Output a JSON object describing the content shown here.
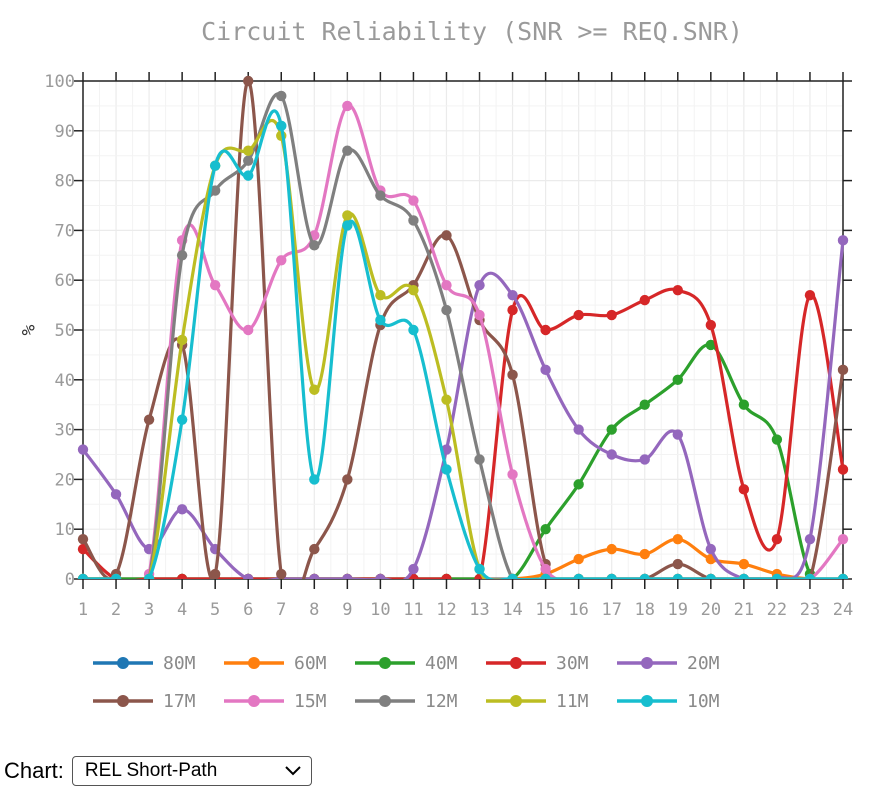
{
  "chart_data": {
    "type": "line",
    "title": "Circuit Reliability (SNR >= REQ.SNR)",
    "xlabel": "",
    "ylabel": "%",
    "xlim": [
      1,
      24
    ],
    "ylim": [
      0,
      100
    ],
    "x": [
      1,
      2,
      3,
      4,
      5,
      6,
      7,
      8,
      9,
      10,
      11,
      12,
      13,
      14,
      15,
      16,
      17,
      18,
      19,
      20,
      21,
      22,
      23,
      24
    ],
    "x_ticks": [
      "1",
      "2",
      "3",
      "4",
      "5",
      "6",
      "7",
      "8",
      "9",
      "10",
      "11",
      "12",
      "13",
      "14",
      "15",
      "16",
      "17",
      "18",
      "19",
      "20",
      "21",
      "22",
      "23",
      "24"
    ],
    "y_ticks": [
      "0",
      "10",
      "20",
      "30",
      "40",
      "50",
      "60",
      "70",
      "80",
      "90",
      "100"
    ],
    "grid": true,
    "legend_position": "bottom",
    "series": [
      {
        "name": "80M",
        "color": "#1f77b4",
        "values": [
          0,
          0,
          0,
          0,
          0,
          0,
          0,
          0,
          0,
          0,
          0,
          0,
          0,
          0,
          0,
          0,
          0,
          0,
          0,
          0,
          0,
          0,
          0,
          0
        ]
      },
      {
        "name": "60M",
        "color": "#ff7f0e",
        "values": [
          0,
          0,
          0,
          0,
          0,
          0,
          0,
          0,
          0,
          0,
          0,
          0,
          0,
          0,
          1,
          4,
          6,
          5,
          8,
          4,
          3,
          1,
          0,
          0
        ]
      },
      {
        "name": "40M",
        "color": "#2ca02c",
        "values": [
          0,
          0,
          0,
          0,
          0,
          0,
          0,
          0,
          0,
          0,
          0,
          0,
          0,
          0,
          10,
          19,
          30,
          35,
          40,
          47,
          35,
          28,
          1,
          0
        ]
      },
      {
        "name": "30M",
        "color": "#d62728",
        "values": [
          6,
          0,
          0,
          0,
          0,
          0,
          0,
          0,
          0,
          0,
          0,
          0,
          0,
          54,
          50,
          53,
          53,
          56,
          58,
          51,
          18,
          8,
          57,
          22
        ]
      },
      {
        "name": "20M",
        "color": "#9467bd",
        "values": [
          26,
          17,
          6,
          14,
          6,
          0,
          0,
          0,
          0,
          0,
          2,
          26,
          59,
          57,
          42,
          30,
          25,
          24,
          29,
          6,
          0,
          0,
          8,
          68
        ]
      },
      {
        "name": "17M",
        "color": "#8c564b",
        "values": [
          8,
          1,
          32,
          47,
          1,
          100,
          1,
          6,
          20,
          51,
          59,
          69,
          52,
          41,
          3,
          0,
          0,
          0,
          3,
          0,
          0,
          0,
          0,
          42
        ]
      },
      {
        "name": "15M",
        "color": "#e377c2",
        "values": [
          0,
          0,
          1,
          68,
          59,
          50,
          64,
          69,
          95,
          78,
          76,
          59,
          53,
          21,
          2,
          0,
          0,
          0,
          0,
          0,
          0,
          0,
          0,
          8
        ]
      },
      {
        "name": "12M",
        "color": "#7f7f7f",
        "values": [
          0,
          0,
          0,
          65,
          78,
          84,
          97,
          67,
          86,
          77,
          72,
          54,
          24,
          0,
          0,
          0,
          0,
          0,
          0,
          0,
          0,
          0,
          0,
          0
        ]
      },
      {
        "name": "11M",
        "color": "#bcbd22",
        "values": [
          0,
          0,
          0,
          48,
          83,
          86,
          89,
          38,
          73,
          57,
          58,
          36,
          2,
          0,
          0,
          0,
          0,
          0,
          0,
          0,
          0,
          0,
          0,
          0
        ]
      },
      {
        "name": "10M",
        "color": "#17becf",
        "values": [
          0,
          0,
          0,
          32,
          83,
          81,
          91,
          20,
          71,
          52,
          50,
          22,
          2,
          0,
          0,
          0,
          0,
          0,
          0,
          0,
          0,
          0,
          0,
          0
        ]
      }
    ]
  },
  "control": {
    "label": "Chart:",
    "selected": "REL Short-Path"
  }
}
